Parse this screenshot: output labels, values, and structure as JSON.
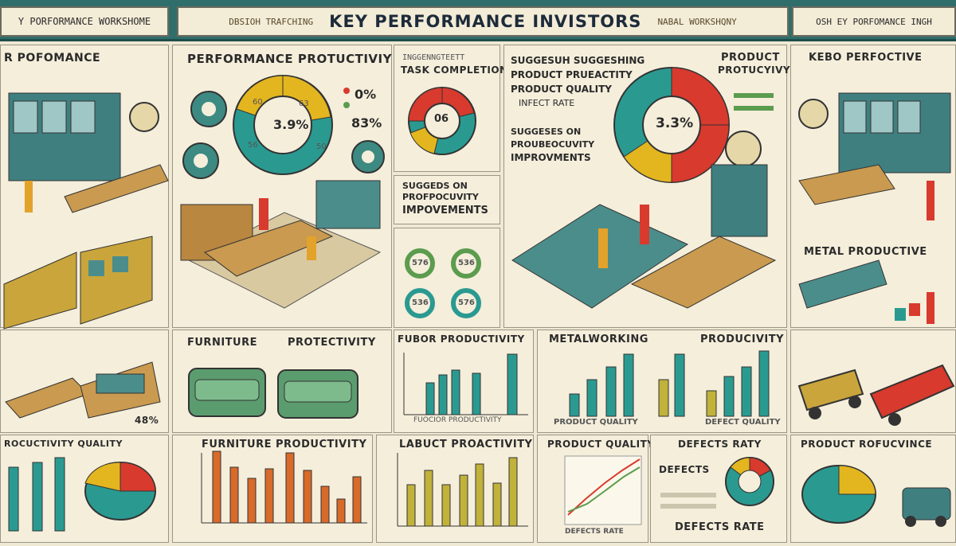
{
  "header": {
    "left": "Y PORFORMANCE WORKSHOME",
    "mid_small_left": "DBSIOH TRAFCHING",
    "title": "KEY PERFORMANCE INVISTORS",
    "mid_small_right": "NABAL WORKSHQNY",
    "right": "OSH EY PORFOMANCE INGH"
  },
  "panels": {
    "left_top_title": "R POFOMANCE",
    "perf_title": "PERFORMANCE PROTUCTIVIY",
    "perf_pct_center": "3.9%",
    "perf_pct_a": "0%",
    "perf_pct_b": "83%",
    "task_small": "INGGENNGTEETT",
    "task_title": "TASK COMPLETION",
    "task_center": "06",
    "sugg_lines": [
      "SUGGESUH SUGGESHING",
      "PRODUCT PRUEACTITY",
      "PRODUCT QUALITY",
      "INFECT RATE"
    ],
    "sugg2_a": "SUGGESES ON",
    "sugg2_b": "PROUBEOCUVITY",
    "sugg2_c": "IMPROVMENTS",
    "sugg3_a": "SUGGEDS ON",
    "sugg3_b": "PROFPOCUVITY",
    "sugg3_c": "IMPOVEMENTS",
    "product_title_a": "PRODUCT",
    "product_title_b": "PROTUCYIVY",
    "product_center": "3.3%",
    "right_title": "KEBO PERFOCTIVE",
    "metal_title": "METAL PRODUCTIVE",
    "furn_title_a": "FURNITURE",
    "furn_title_b": "PROTECTIVITY",
    "furn_pct": "48%",
    "fubor_title": "FUBOR PRODUCTIVITY",
    "fubor_axis": "FUOCIOR PRODUCTIVITY",
    "metalw_a": "METALWORKING",
    "metalw_b": "PRODUCIVITY",
    "metalw_axis_a": "PRODUCT QUALITY",
    "metalw_axis_b": "DEFECT QUALITY",
    "bottom_left_title": "ROCUCTIVITY QUALITY",
    "furn_prod_title": "FURNITURE PRODUCTIVITY",
    "labuct_title": "LABUCT PROACTIVITY",
    "pq_title": "PRODUCT QUALITY",
    "defects_rate_title": "DEFECTS RATY",
    "defects": "DEFECTS",
    "defects_rate": "DEFECTS RATE",
    "defects_axis": "DEFECTS RATE",
    "prod_ref_title": "PRODUCT ROFUCVINCE",
    "mini_gauges": [
      "576",
      "536",
      "536",
      "576"
    ],
    "perf_slices": [
      "60",
      "63",
      "56",
      "50"
    ]
  },
  "colors": {
    "teal": "#2a9a91",
    "yellow": "#e3b61f",
    "red": "#d83a2e",
    "green": "#5b9c4e",
    "olive": "#c0b23a",
    "navy": "#1d2b3a"
  }
}
